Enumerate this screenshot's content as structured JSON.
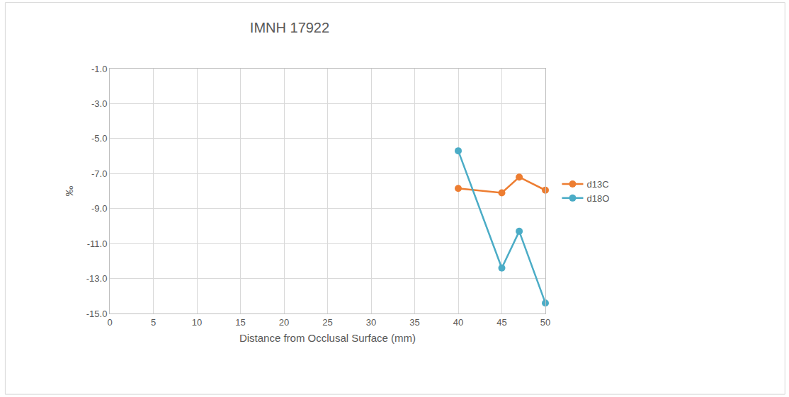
{
  "chart_data": {
    "type": "line",
    "title": "IMNH 17922",
    "x_label": "Distance from Occlusal Surface (mm)",
    "y_label": "‰",
    "xlim": [
      0,
      50
    ],
    "xticks": [
      0,
      5,
      10,
      15,
      20,
      25,
      30,
      35,
      40,
      45,
      50
    ],
    "ylim": [
      -15,
      -1
    ],
    "yticks": [
      {
        "value": -15,
        "label": "-15.0"
      },
      {
        "value": -13,
        "label": "-13.0"
      },
      {
        "value": -11,
        "label": "-11.0"
      },
      {
        "value": -9,
        "label": "-9.0"
      },
      {
        "value": -7,
        "label": "-7.0"
      },
      {
        "value": -5,
        "label": "-5.0"
      },
      {
        "value": -3,
        "label": "-3.0"
      },
      {
        "value": -1,
        "label": "-1.0"
      }
    ],
    "grid": true,
    "legend": "right",
    "x": [
      40,
      45,
      47,
      50
    ],
    "series": [
      {
        "name": "d13C",
        "color": "#ed7d31",
        "marker": "circle",
        "line_style": "solid",
        "values": [
          -7.85,
          -8.1,
          -7.2,
          -7.95
        ]
      },
      {
        "name": "d18O",
        "color": "#4bacc6",
        "marker": "circle",
        "line_style": "solid",
        "values": [
          -5.7,
          -12.4,
          -10.3,
          -14.4
        ]
      }
    ]
  }
}
